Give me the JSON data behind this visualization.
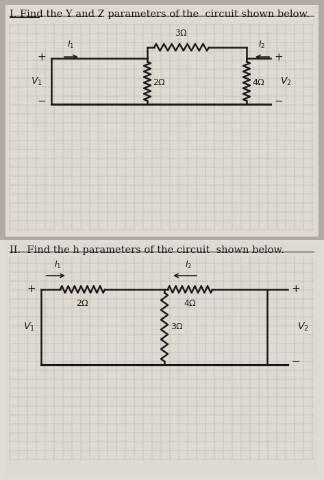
{
  "bg_color_top": "#b8b0a8",
  "bg_color_bottom": "#e8e4de",
  "paper_color": "#e8e4de",
  "grid_color": "#c0bcb4",
  "line_color": "#1a1a1a",
  "text_color": "#1a1a1a",
  "title1": "I. Find the Y and Z parameters of the  circuit shown below.",
  "title2": "II.  Find the h parameters of the circuit  shown below.",
  "title_fontsize": 10.5,
  "lw": 1.8
}
